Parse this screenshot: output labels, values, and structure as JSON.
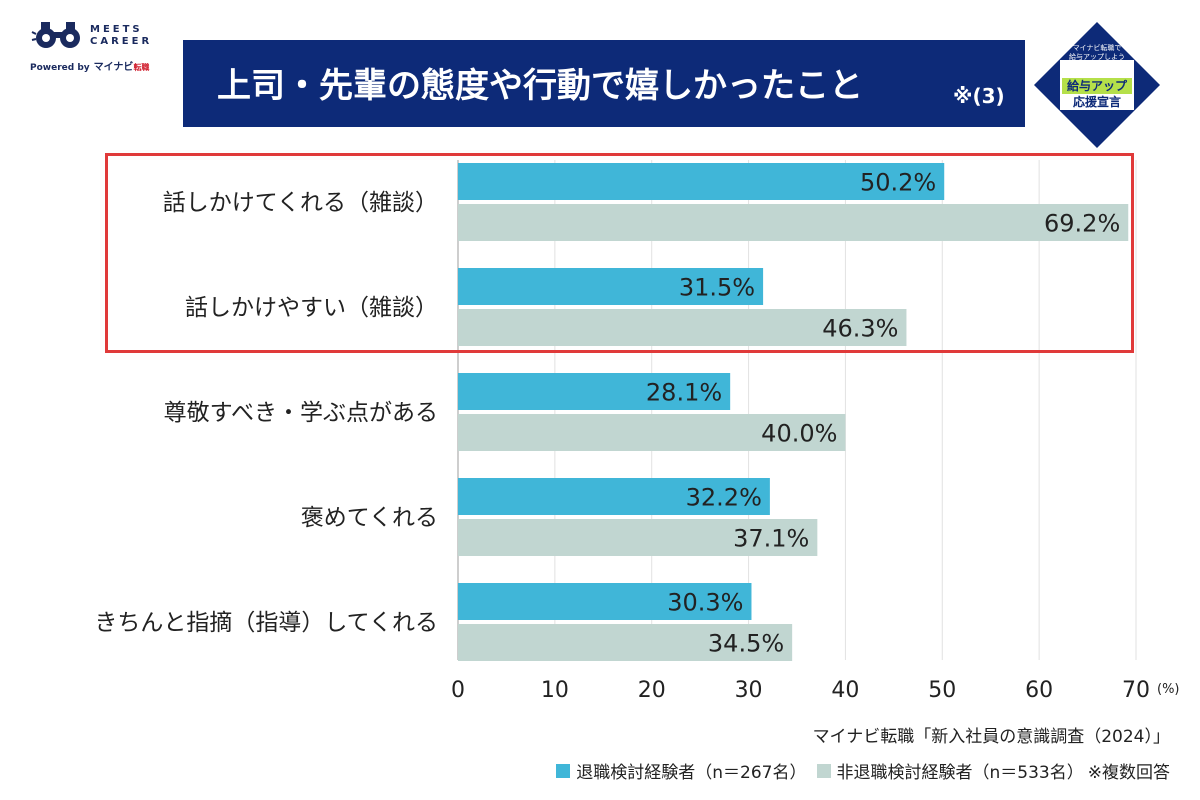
{
  "logo": {
    "name": "MEETS CAREER",
    "line1": "MEETS",
    "line2": "CAREER",
    "powered_by": "Powered by",
    "brand": "マイナビ",
    "brand_sub": "転職"
  },
  "title": {
    "main": "上司・先輩の態度や行動で嬉しかったこと",
    "note": "※(3)"
  },
  "badge": {
    "line1": "マイナビ転職で",
    "line2": "給与アップしよう",
    "line3": "給与アップ",
    "line4": "応援宣言"
  },
  "chart_data": {
    "type": "bar",
    "orientation": "horizontal",
    "categories": [
      "話しかけてくれる（雑談）",
      "話しかけやすい（雑談）",
      "尊敬すべき・学ぶ点がある",
      "褒めてくれる",
      "きちんと指摘（指導）してくれる"
    ],
    "series": [
      {
        "name": "退職検討経験者（n＝267名）",
        "values": [
          50.2,
          31.5,
          28.1,
          32.2,
          30.3
        ],
        "labels": [
          "50.2%",
          "31.5%",
          "28.1%",
          "32.2%",
          "30.3%"
        ],
        "color": "#40b6d8"
      },
      {
        "name": "非退職検討経験者（n＝533名）",
        "values": [
          69.2,
          46.3,
          40.0,
          37.1,
          34.5
        ],
        "labels": [
          "69.2%",
          "46.3%",
          "40.0%",
          "37.1%",
          "34.5%"
        ],
        "color": "#c1d6d1"
      }
    ],
    "xlim": [
      0,
      70
    ],
    "ticks": [
      "0",
      "10",
      "20",
      "30",
      "40",
      "50",
      "60",
      "70"
    ],
    "unit": "(%)",
    "grid": true,
    "highlight_color": "#e03a3a"
  },
  "footer": {
    "source": "マイナビ転職「新入社員の意識調査（2024）」",
    "legend_a": "退職検討経験者（n＝267名）",
    "legend_b": "非退職検討経験者（n＝533名）",
    "note": "※複数回答"
  }
}
